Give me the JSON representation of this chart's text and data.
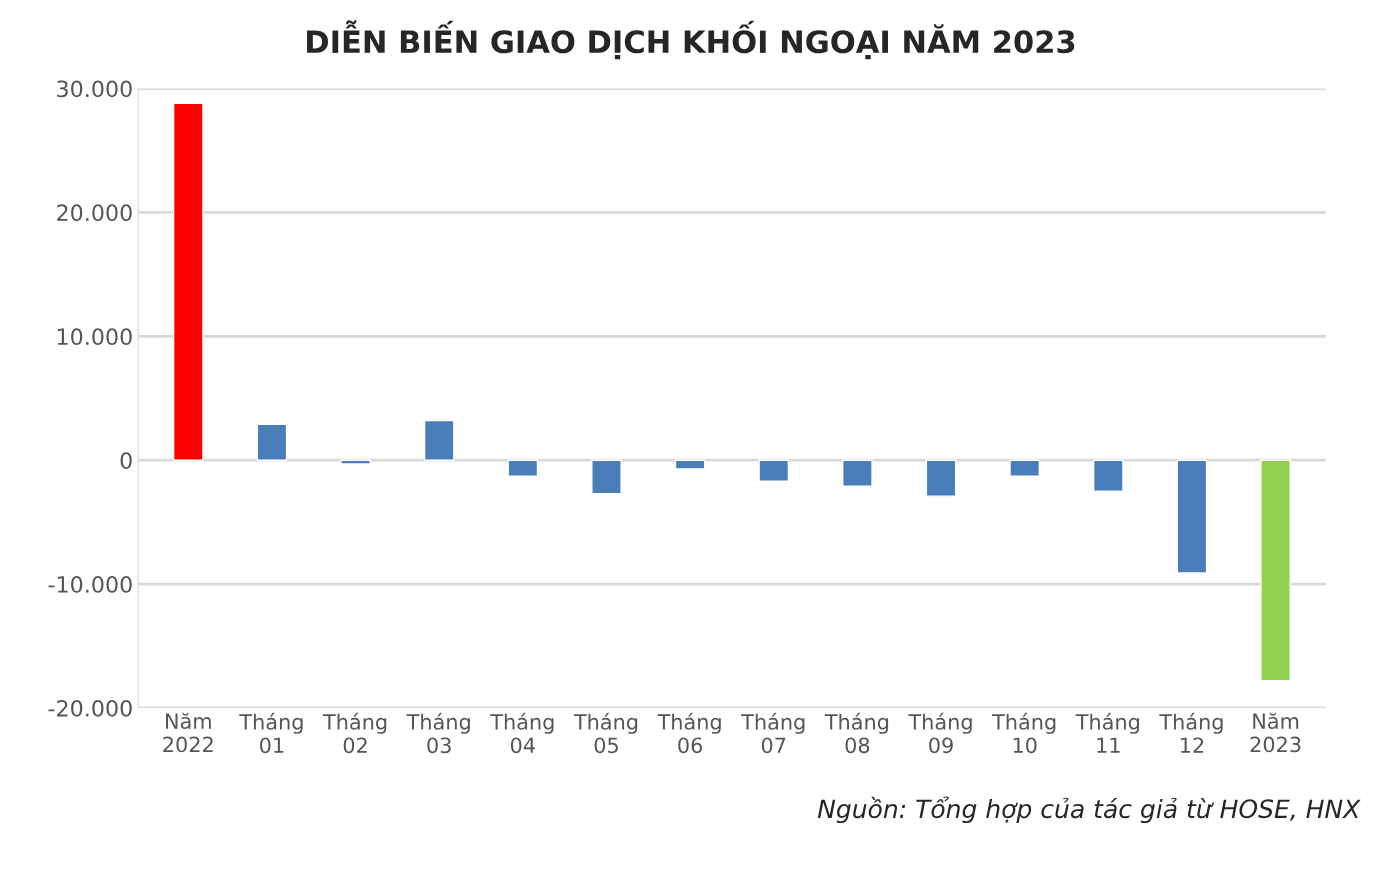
{
  "chart_data": {
    "type": "bar",
    "title": "DIỄN BIẾN GIAO DỊCH KHỐI NGOẠI NĂM 2023",
    "categories": [
      "Năm\n2022",
      "Tháng\n01",
      "Tháng\n02",
      "Tháng\n03",
      "Tháng\n04",
      "Tháng\n05",
      "Tháng\n06",
      "Tháng\n07",
      "Tháng\n08",
      "Tháng\n09",
      "Tháng\n10",
      "Tháng\n11",
      "Tháng\n12",
      "Năm\n2023"
    ],
    "values": [
      28800,
      2900,
      -300,
      3200,
      -1300,
      -2700,
      -700,
      -1700,
      -2100,
      -2900,
      -1300,
      -2500,
      -9100,
      -17800
    ],
    "colors": [
      "#ff0000",
      "#4a7ebb",
      "#4a7ebb",
      "#4a7ebb",
      "#4a7ebb",
      "#4a7ebb",
      "#4a7ebb",
      "#4a7ebb",
      "#4a7ebb",
      "#4a7ebb",
      "#4a7ebb",
      "#4a7ebb",
      "#4a7ebb",
      "#92d050"
    ],
    "ylim": [
      -20000,
      30000
    ],
    "yticks": [
      {
        "value": -20000,
        "label": "-20.000"
      },
      {
        "value": -10000,
        "label": "-10.000"
      },
      0,
      {
        "value": 10000,
        "label": "10.000"
      },
      {
        "value": 20000,
        "label": "20.000"
      },
      {
        "value": 30000,
        "label": "30.000"
      }
    ],
    "grid": "y",
    "annotations": [
      "Nguồn: Tổng hợp của tác giả từ HOSE, HNX"
    ]
  }
}
